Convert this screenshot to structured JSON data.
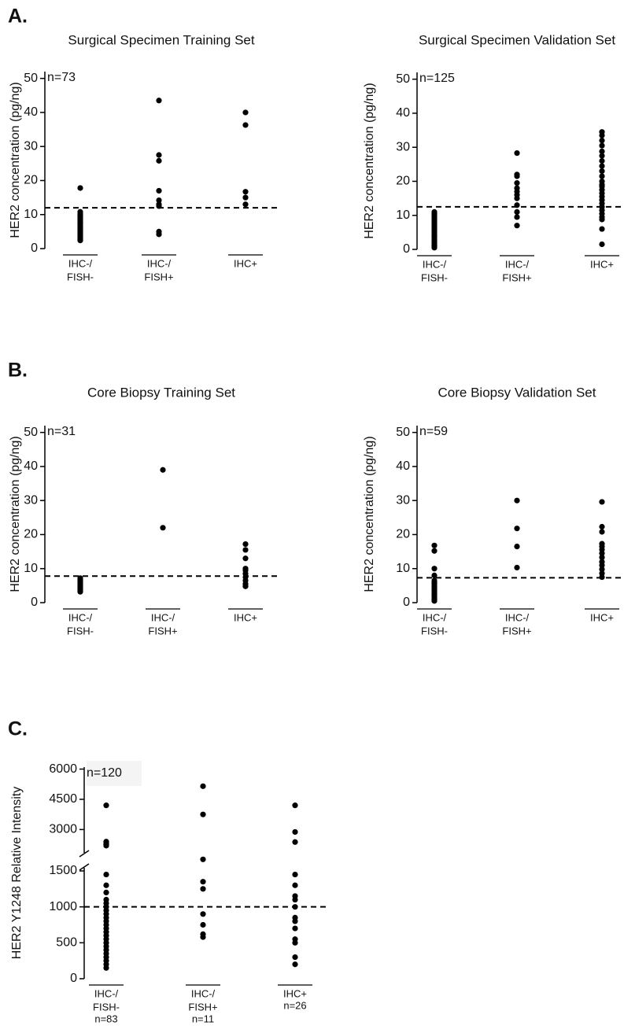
{
  "labels": [
    "A.",
    "B.",
    "C."
  ],
  "chart_data": [
    {
      "type": "strip",
      "title": "Surgical Specimen Training Set",
      "y_label": "HER2 concentration (pg/ng)",
      "annotation": "n=73",
      "categories": [
        [
          "IHC-/",
          "FISH-"
        ],
        [
          "IHC-/",
          "FISH+"
        ],
        [
          "IHC+"
        ]
      ],
      "values": [
        [
          17.8,
          10.8,
          10.2,
          9.8,
          9.4,
          9,
          8.5,
          8,
          7.6,
          7.2,
          6.8,
          6.4,
          6,
          5.6,
          5.2,
          4.8,
          4.4,
          4,
          3.6,
          3.2,
          2.8,
          2.4
        ],
        [
          43.5,
          27.5,
          25.8,
          17,
          14.2,
          13,
          12.5,
          5,
          4.2
        ],
        [
          40,
          36.3,
          16.7,
          15,
          13
        ]
      ],
      "color": "#000000",
      "threshold": 12,
      "ylim": [
        0,
        52
      ],
      "yticks": [
        0,
        10,
        20,
        30,
        40,
        50
      ]
    },
    {
      "type": "strip",
      "title": "Surgical Specimen Validation Set",
      "y_label": "HER2 concentration (pg/ng)",
      "annotation": "n=125",
      "categories": [
        [
          "IHC-/",
          "FISH-"
        ],
        [
          "IHC-/",
          "FISH+"
        ],
        [
          "IHC+"
        ]
      ],
      "values": [
        [
          11,
          10.5,
          10,
          9.5,
          9,
          8.5,
          8,
          7.5,
          7,
          6.5,
          6,
          5.5,
          5,
          4.5,
          4,
          3.5,
          3,
          2.5,
          2,
          1.5,
          1,
          0.5
        ],
        [
          28.3,
          22,
          21.5,
          19.5,
          18,
          17,
          16,
          15,
          13,
          11,
          9.5,
          7
        ],
        [
          34.5,
          33.5,
          32,
          30.5,
          28.8,
          27.5,
          26,
          24.5,
          23,
          21.5,
          20,
          19,
          18.5,
          17.5,
          16.5,
          15.5,
          14.5,
          13.5,
          12.5,
          11.5,
          10.5,
          9.5,
          8.8,
          6,
          1.5
        ]
      ],
      "color": "#000000",
      "threshold": 12.5,
      "ylim": [
        0,
        52
      ],
      "yticks": [
        0,
        10,
        20,
        30,
        40,
        50
      ]
    },
    {
      "type": "strip",
      "title": "Core Biopsy Training Set",
      "y_label": "HER2 concentration (pg/ng)",
      "annotation": "n=31",
      "categories": [
        [
          "IHC-/",
          "FISH-"
        ],
        [
          "IHC-/",
          "FISH+"
        ],
        [
          "IHC+"
        ]
      ],
      "values": [
        [
          7.2,
          6.8,
          6.4,
          6,
          5.6,
          5.2,
          4.8,
          4.4,
          4,
          3.6,
          3.2
        ],
        [
          39,
          22
        ],
        [
          17.2,
          15.5,
          13,
          10,
          9.5,
          8.5,
          7.5,
          6.5,
          5.5,
          4.8
        ]
      ],
      "color": "#000000",
      "threshold": 7.8,
      "ylim": [
        0,
        52
      ],
      "yticks": [
        0,
        10,
        20,
        30,
        40,
        50
      ]
    },
    {
      "type": "strip",
      "title": "Core Biopsy Validation Set",
      "y_label": "HER2 concentration (pg/ng)",
      "annotation": "n=59",
      "categories": [
        [
          "IHC-/",
          "FISH-"
        ],
        [
          "IHC-/",
          "FISH+"
        ],
        [
          "IHC+"
        ]
      ],
      "values": [
        [
          16.8,
          15.2,
          10,
          8,
          6.5,
          6,
          5.5,
          5,
          4.5,
          4,
          3.5,
          3,
          2.5,
          2,
          1.5,
          1,
          0.5
        ],
        [
          30,
          21.8,
          16.5,
          10.3
        ],
        [
          29.6,
          22.3,
          20.8,
          17.3,
          16.5,
          15.6,
          14.5,
          13.3,
          12,
          11,
          9.8,
          8.6,
          7.5
        ]
      ],
      "color": "#000000",
      "threshold": 7.3,
      "ylim": [
        0,
        52
      ],
      "yticks": [
        0,
        10,
        20,
        30,
        40,
        50
      ]
    },
    {
      "type": "strip",
      "y_label": "HER2 Y1248 Relative Intensity",
      "annotation": "n=120",
      "categories": [
        [
          "IHC-/",
          "FISH-"
        ],
        [
          "IHC-/",
          "FISH+"
        ],
        [
          "IHC+"
        ]
      ],
      "category_counts": [
        "n=83",
        "n=11",
        "n=26"
      ],
      "values": [
        [
          4200,
          2400,
          2350,
          2300,
          2250,
          2200,
          1450,
          1300,
          1200,
          1100,
          1050,
          1000,
          950,
          900,
          850,
          800,
          750,
          700,
          650,
          600,
          550,
          500,
          450,
          400,
          350,
          300,
          250,
          200,
          150
        ],
        [
          5150,
          3750,
          1520,
          1350,
          1250,
          900,
          750,
          620,
          580
        ],
        [
          4200,
          2880,
          2380,
          1450,
          1300,
          1150,
          1100,
          1000,
          850,
          800,
          700,
          550,
          500,
          300,
          200
        ]
      ],
      "color": "#000000",
      "threshold": 1000,
      "ylim": [
        0,
        6100
      ],
      "ybreak": [
        1500,
        2000
      ],
      "yticks": [
        0,
        500,
        1000,
        1500,
        3000,
        4500,
        6000
      ]
    }
  ]
}
